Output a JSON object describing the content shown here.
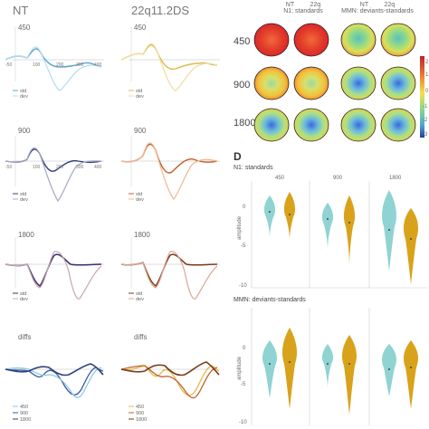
{
  "colA": {
    "title": "NT",
    "panels": [
      {
        "label": "450",
        "legend": [
          "std",
          "dev"
        ]
      },
      {
        "label": "900",
        "legend": [
          "std",
          "dev"
        ]
      },
      {
        "label": "1800",
        "legend": [
          "std",
          "dev"
        ]
      },
      {
        "label": "diffs",
        "legend": [
          "450",
          "900",
          "1800"
        ]
      }
    ]
  },
  "colB": {
    "title": "22q11.2DS",
    "panels": [
      {
        "label": "450",
        "legend": [
          "std",
          "dev"
        ]
      },
      {
        "label": "900",
        "legend": [
          "std",
          "dev"
        ]
      },
      {
        "label": "1800",
        "legend": [
          "std",
          "dev"
        ]
      },
      {
        "label": "diffs",
        "legend": [
          "450",
          "900",
          "1800"
        ]
      }
    ]
  },
  "ticks": [
    "-50",
    "100",
    "200",
    "300",
    "400"
  ],
  "topomaps": {
    "n1_header": {
      "group1": "NT",
      "group2": "22q",
      "subtitle": "N1: standards"
    },
    "mmn_header": {
      "group1": "NT",
      "group2": "22q",
      "subtitle": "MMN: deviants-standards"
    },
    "rows": [
      "450",
      "900",
      "1800"
    ],
    "colorbar_ticks": [
      "2",
      "1",
      "0",
      "-1",
      "-2",
      "-3"
    ]
  },
  "panelD": {
    "letter": "D",
    "top": {
      "subtitle": "N1: standards",
      "conditions": [
        "450",
        "900",
        "1800"
      ],
      "ylabel": "amplitude",
      "yticks": [
        "0",
        "-5",
        "-10"
      ]
    },
    "bottom": {
      "subtitle": "MMN: deviants-standards",
      "ylabel": "amplitude",
      "yticks": [
        "0",
        "-5",
        "-10"
      ]
    },
    "colors": {
      "NT": "#8fd3d3",
      "22q": "#d9a21b"
    }
  },
  "colors": {
    "nt_std": "#2e3f7a",
    "nt_dev": "#a7c4de",
    "q_std": "#c2602a",
    "q_dev": "#f0b890",
    "ltblue": "#8ec9e3",
    "gold": "#e0b84a"
  }
}
